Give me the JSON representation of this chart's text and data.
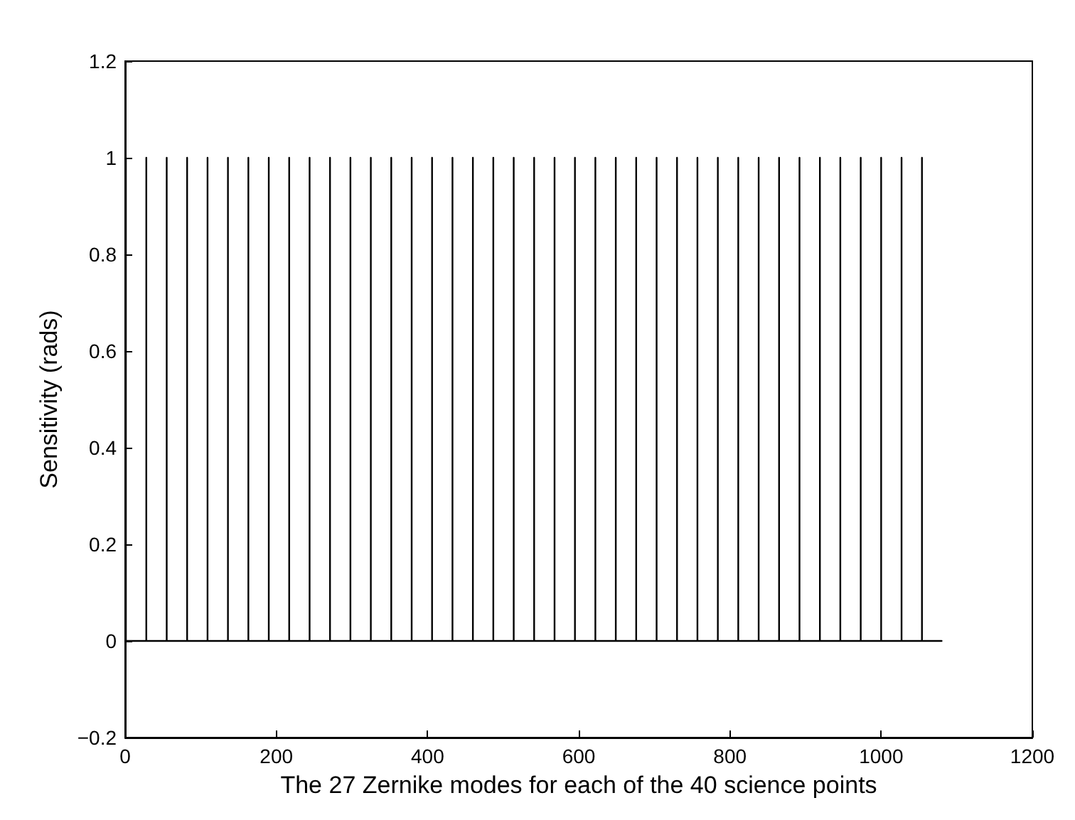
{
  "chart_data": {
    "type": "line",
    "xlabel": "The 27 Zernike modes for each of the 40 science points",
    "ylabel": "Sensitivity (rads)",
    "xlim": [
      0,
      1200
    ],
    "xticks": [
      0,
      200,
      400,
      600,
      800,
      1000,
      1200
    ],
    "ylim": [
      -0.2,
      1.2
    ],
    "yticks": [
      {
        "value": -0.2,
        "label": "−0.2"
      },
      0,
      0.2,
      0.4,
      0.6,
      0.8,
      1,
      1.2
    ],
    "marker": "none",
    "line_style": "solid",
    "series": [
      {
        "color": "#000000",
        "x": [
          1,
          1,
          1,
          28,
          28,
          28,
          55,
          55,
          55,
          82,
          82,
          82,
          109,
          109,
          109,
          136,
          136,
          136,
          163,
          163,
          163,
          190,
          190,
          190,
          217,
          217,
          217,
          244,
          244,
          244,
          271,
          271,
          271,
          298,
          298,
          298,
          325,
          325,
          325,
          352,
          352,
          352,
          379,
          379,
          379,
          406,
          406,
          406,
          433,
          433,
          433,
          460,
          460,
          460,
          487,
          487,
          487,
          514,
          514,
          514,
          541,
          541,
          541,
          568,
          568,
          568,
          595,
          595,
          595,
          622,
          622,
          622,
          649,
          649,
          649,
          676,
          676,
          676,
          703,
          703,
          703,
          730,
          730,
          730,
          757,
          757,
          757,
          784,
          784,
          784,
          811,
          811,
          811,
          838,
          838,
          838,
          865,
          865,
          865,
          892,
          892,
          892,
          919,
          919,
          919,
          946,
          946,
          946,
          973,
          973,
          973,
          1000,
          1000,
          1000,
          1027,
          1027,
          1027,
          1054,
          1054,
          1054,
          1080
        ],
        "values": [
          0,
          1,
          0,
          0,
          1,
          0,
          0,
          1,
          0,
          0,
          1,
          0,
          0,
          1,
          0,
          0,
          1,
          0,
          0,
          1,
          0,
          0,
          1,
          0,
          0,
          1,
          0,
          0,
          1,
          0,
          0,
          1,
          0,
          0,
          1,
          0,
          0,
          1,
          0,
          0,
          1,
          0,
          0,
          1,
          0,
          0,
          1,
          0,
          0,
          1,
          0,
          0,
          1,
          0,
          0,
          1,
          0,
          0,
          1,
          0,
          0,
          1,
          0,
          0,
          1,
          0,
          0,
          1,
          0,
          0,
          1,
          0,
          0,
          1,
          0,
          0,
          1,
          0,
          0,
          1,
          0,
          0,
          1,
          0,
          0,
          1,
          0,
          0,
          1,
          0,
          0,
          1,
          0,
          0,
          1,
          0,
          0,
          1,
          0,
          0,
          1,
          0,
          0,
          1,
          0,
          0,
          1,
          0,
          0,
          1,
          0,
          0,
          1,
          0,
          0,
          1,
          0,
          0,
          1,
          0,
          0
        ]
      }
    ]
  }
}
